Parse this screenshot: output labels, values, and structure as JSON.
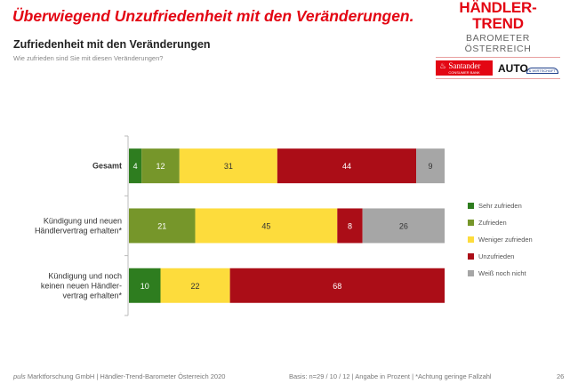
{
  "header": {
    "main_title": "Überwiegend Unzufriedenheit mit den Veränderungen.",
    "logo_title": "HÄNDLER-TREND",
    "logo_subtitle": "BAROMETER ÖSTERREICH",
    "sponsor_1": "Santander",
    "sponsor_1_sub": "CONSUMER BANK",
    "sponsor_2": "AUTO",
    "sponsor_2_sub": "& WIRTSCHAFT"
  },
  "footer": {
    "brand": "puls",
    "left": " Marktforschung GmbH | Händler-Trend-Barometer Österreich 2020",
    "basis": "Basis: n=29 / 10 / 12  | Angabe in Prozent | *Achtung geringe Fallzahl",
    "page_number": "26"
  },
  "chart_data": {
    "type": "bar",
    "orientation": "horizontal",
    "stacked": true,
    "title": "Zufriedenheit mit den Veränderungen",
    "subtitle": "Wie zufrieden sind Sie mit diesen Veränderungen?",
    "xlabel": "",
    "ylabel": "",
    "xlim": [
      0,
      100
    ],
    "grid": false,
    "legend_position": "right",
    "categories": [
      [
        "Gesamt"
      ],
      [
        "Kündigung und neuen",
        "Händlervertrag erhalten*"
      ],
      [
        "Kündigung und noch",
        "keinen neuen Händler-",
        "vertrag erhalten*"
      ]
    ],
    "series": [
      {
        "name": "Sehr zufrieden",
        "color": "#2e7d1f",
        "label_color": "#ffffff",
        "values": [
          4,
          0,
          10
        ]
      },
      {
        "name": "Zufrieden",
        "color": "#76962a",
        "label_color": "#ffffff",
        "values": [
          12,
          21,
          0
        ]
      },
      {
        "name": "Weniger zufrieden",
        "color": "#fddc3c",
        "label_color": "#333333",
        "values": [
          31,
          45,
          22
        ]
      },
      {
        "name": "Unzufrieden",
        "color": "#ab0d17",
        "label_color": "#ffffff",
        "values": [
          44,
          8,
          68
        ]
      },
      {
        "name": "Weiß noch nicht",
        "color": "#a6a6a6",
        "label_color": "#333333",
        "values": [
          9,
          26,
          0
        ]
      }
    ]
  }
}
